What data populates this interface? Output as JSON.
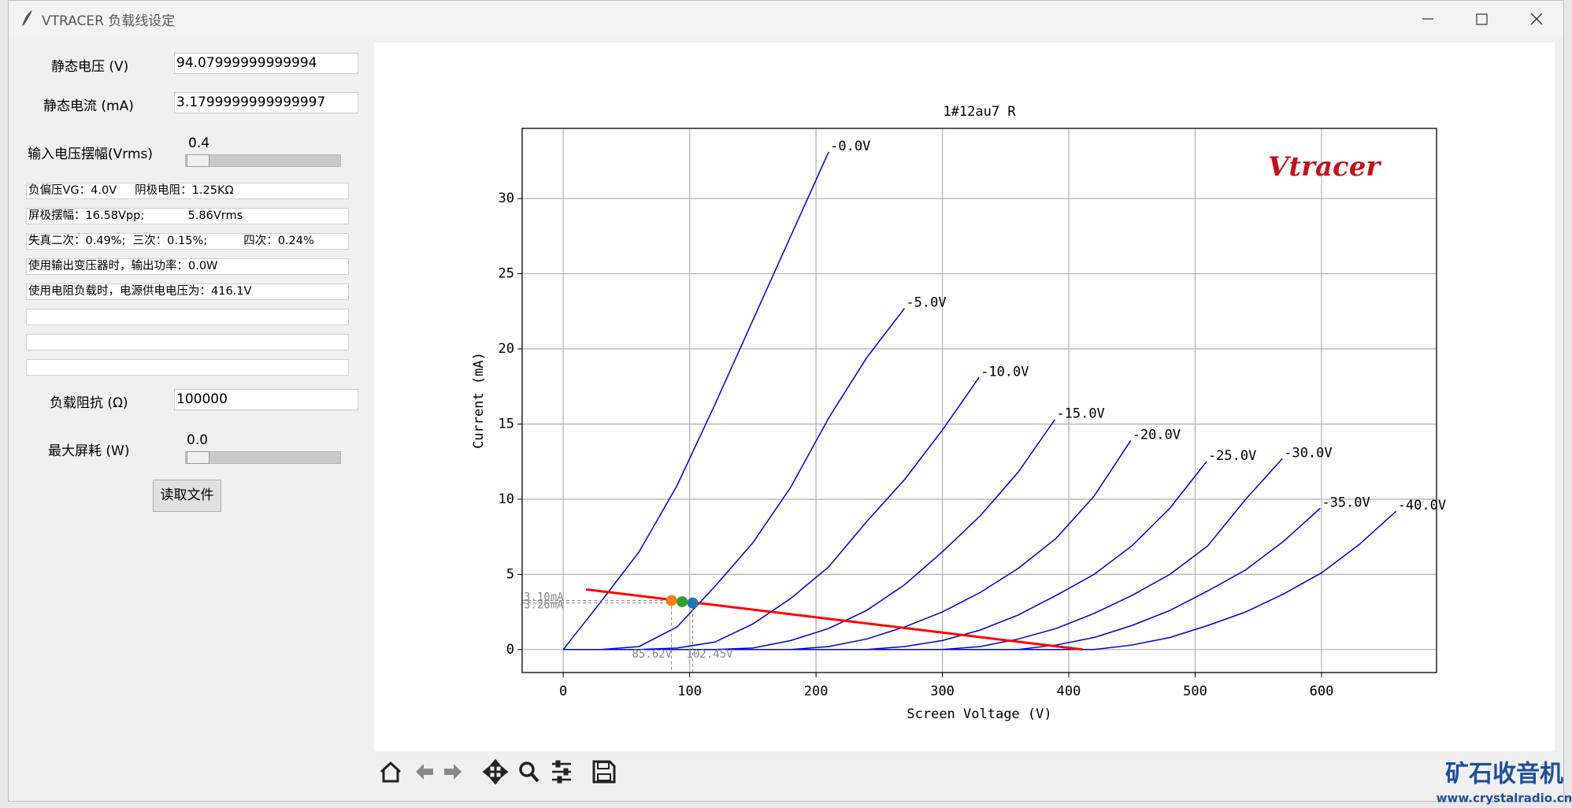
{
  "window": {
    "title": "VTRACER 负载线设定"
  },
  "form": {
    "quiescent_voltage": {
      "label": "静态电压 (V)",
      "value": "94.07999999999994"
    },
    "quiescent_current": {
      "label": "静态电流 (mA)",
      "value": "3.1799999999999997"
    },
    "input_swing": {
      "label": "输入电压摆幅(Vrms)",
      "value": "0.4"
    },
    "info_lines": [
      "负偏压VG：4.0V     阴极电阻：1.25KΩ",
      "屏极摆幅：16.58Vpp;            5.86Vrms",
      "失真二次：0.49%;  三次：0.15%;          四次：0.24%",
      "使用输出变压器时，输出功率：0.0W",
      "使用电阻负载时，电源供电电压为：416.1V"
    ],
    "load": {
      "label": "负载阻抗 (Ω)",
      "value": "100000"
    },
    "max_dissipation": {
      "label": "最大屏耗 (W)",
      "value": "0.0"
    },
    "button": "读取文件"
  },
  "watermark": {
    "title": "矿石收音机",
    "url": "www.crystalradio.cn"
  },
  "chart_data": {
    "type": "line",
    "title": "1#12au7 R",
    "x_label": "Screen Voltage (V)",
    "y_label": "Current (mA)",
    "logo": "Vtracer",
    "xlim": [
      -32.5,
      691
    ],
    "ylim": [
      -1.53,
      34.67
    ],
    "xticks": [
      0,
      100,
      200,
      300,
      400,
      500,
      600
    ],
    "yticks": [
      0,
      5,
      10,
      15,
      20,
      25,
      30
    ],
    "grid": true,
    "series": [
      {
        "name": "-0.0V",
        "color": "#0000cc",
        "x": [
          0,
          30,
          60,
          90,
          120,
          150,
          180,
          210
        ],
        "values": [
          0,
          3.2,
          6.5,
          10.9,
          16.3,
          21.9,
          27.5,
          33.1
        ]
      },
      {
        "name": "-5.0V",
        "color": "#0000cc",
        "x": [
          0,
          30,
          60,
          90,
          120,
          150,
          180,
          210,
          240,
          270
        ],
        "values": [
          0,
          0,
          0.2,
          1.5,
          4.2,
          7.1,
          10.8,
          15.4,
          19.4,
          22.7
        ]
      },
      {
        "name": "-10.0V",
        "color": "#0000cc",
        "x": [
          0,
          60,
          90,
          120,
          150,
          180,
          210,
          240,
          270,
          300,
          329
        ],
        "values": [
          0,
          0,
          0.1,
          0.5,
          1.7,
          3.4,
          5.5,
          8.5,
          11.3,
          14.6,
          18.1
        ]
      },
      {
        "name": "-15.0V",
        "color": "#0000cc",
        "x": [
          0,
          120,
          150,
          180,
          210,
          240,
          270,
          300,
          330,
          360,
          389
        ],
        "values": [
          0,
          0,
          0.1,
          0.6,
          1.4,
          2.6,
          4.3,
          6.5,
          8.9,
          11.8,
          15.3
        ]
      },
      {
        "name": "-20.0V",
        "color": "#0000cc",
        "x": [
          0,
          180,
          210,
          240,
          270,
          300,
          330,
          360,
          390,
          420,
          449
        ],
        "values": [
          0,
          0,
          0.2,
          0.7,
          1.5,
          2.5,
          3.8,
          5.4,
          7.4,
          10.2,
          13.9
        ]
      },
      {
        "name": "-25.0V",
        "color": "#0000cc",
        "x": [
          0,
          240,
          270,
          300,
          330,
          360,
          390,
          420,
          450,
          480,
          509
        ],
        "values": [
          0,
          0,
          0.2,
          0.6,
          1.3,
          2.3,
          3.6,
          5.0,
          6.9,
          9.4,
          12.5
        ]
      },
      {
        "name": "-30.0V",
        "color": "#0000cc",
        "x": [
          0,
          300,
          330,
          360,
          390,
          420,
          450,
          480,
          510,
          540,
          569
        ],
        "values": [
          0,
          0,
          0.2,
          0.7,
          1.4,
          2.4,
          3.6,
          5.0,
          6.9,
          10.0,
          12.7
        ]
      },
      {
        "name": "-35.0V",
        "color": "#0000cc",
        "x": [
          0,
          360,
          390,
          420,
          450,
          480,
          510,
          540,
          570,
          599
        ],
        "values": [
          0,
          0,
          0.3,
          0.8,
          1.6,
          2.6,
          3.9,
          5.3,
          7.2,
          9.4
        ]
      },
      {
        "name": "-40.0V",
        "color": "#0000cc",
        "x": [
          0,
          420,
          450,
          480,
          510,
          540,
          570,
          600,
          630,
          659
        ],
        "values": [
          0,
          0,
          0.3,
          0.8,
          1.6,
          2.5,
          3.7,
          5.1,
          7.0,
          9.2
        ]
      }
    ],
    "load_line": {
      "color": "#ff0000",
      "x": [
        18,
        411
      ],
      "values": [
        4.0,
        0
      ]
    },
    "points": [
      {
        "color": "#ff7f0e",
        "x": 85.62,
        "y": 3.26,
        "x_label": "85.62V",
        "y_label": "3.26mA"
      },
      {
        "color": "#2ca02c",
        "x": 94.08,
        "y": 3.18
      },
      {
        "color": "#1f77b4",
        "x": 102.45,
        "y": 3.1,
        "x_label": "102.45V",
        "y_label": "3.10mA"
      }
    ]
  }
}
